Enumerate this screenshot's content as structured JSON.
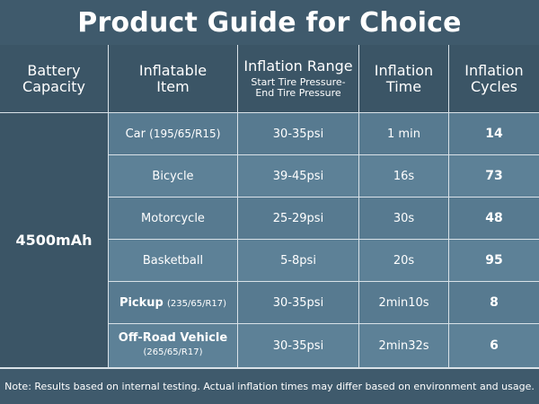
{
  "title": "Product Guide for Choice",
  "headers": {
    "battery": [
      "Battery",
      "Capacity"
    ],
    "item": [
      "Inflatable",
      "Item"
    ],
    "range": [
      "Inflation Range"
    ],
    "range_sub": [
      "Start Tire Pressure-",
      "End Tire Pressure"
    ],
    "time": [
      "Inflation",
      "Time"
    ],
    "cycles": [
      "Inflation",
      "Cycles"
    ]
  },
  "capacity": "4500mAh",
  "rows": [
    {
      "item": "Car",
      "item_spec": "(195/65/R15)",
      "range": "30-35psi",
      "time": "1 min",
      "cycles": "14"
    },
    {
      "item": "Bicycle",
      "item_spec": "",
      "range": "39-45psi",
      "time": "16s",
      "cycles": "73"
    },
    {
      "item": "Motorcycle",
      "item_spec": "",
      "range": "25-29psi",
      "time": "30s",
      "cycles": "48"
    },
    {
      "item": "Basketball",
      "item_spec": "",
      "range": "5-8psi",
      "time": "20s",
      "cycles": "95"
    },
    {
      "item": "Pickup",
      "item_spec": "(235/65/R17)",
      "range": "30-35psi",
      "time": "2min10s",
      "cycles": "8"
    },
    {
      "item": "Off-Road Vehicle",
      "item_spec": "(265/65/R17)",
      "range": "30-35psi",
      "time": "2min32s",
      "cycles": "6"
    }
  ],
  "note": "Note: Results based on internal testing. Actual inflation times may differ based on environment and usage."
}
